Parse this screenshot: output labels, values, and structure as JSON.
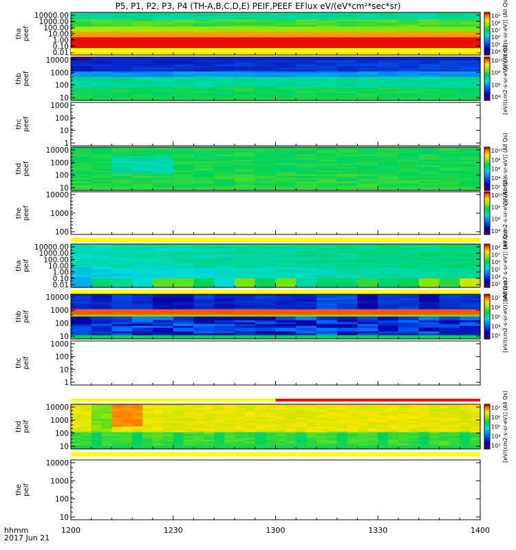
{
  "title": "P5, P1, P2, P3, P4 (TH-A,B,C,D,E) PEIF,PEEF EFlux eV/(eV*cm²*sec*sr)",
  "footer": {
    "time_label": "hhmm",
    "date_label": "2017 Jun 21"
  },
  "colorbar_unit": "[eV/(cm2-s-sr-eV)] (All Qs)",
  "chart_data": {
    "type": "heatmap",
    "x_axis": {
      "range": [
        1200,
        1400
      ],
      "ticks": [
        "1200",
        "1230",
        "1300",
        "1330",
        "1400"
      ]
    },
    "panels": [
      {
        "name": "tha-peef",
        "ylabel": [
          "tha",
          "peef"
        ],
        "yticks": [
          "10000.00",
          "1000.00",
          "100.00",
          "10.00",
          "1.00",
          "0.10",
          "0.01"
        ],
        "has_data": true,
        "colormin": 4,
        "colormax": 9,
        "cb_ticks": [
          "10⁹",
          "10⁸",
          "10⁷",
          "10⁶",
          "10⁵",
          "10⁴"
        ],
        "bar_after": "yellow"
      },
      {
        "name": "thb-peef",
        "ylabel": [
          "thb",
          "peef"
        ],
        "yticks": [
          "10000",
          "1000",
          "100",
          "10"
        ],
        "has_data": true,
        "colormin": 4,
        "colormax": 10,
        "cb_ticks": [
          "10¹⁰",
          "10⁸",
          "10⁶",
          "10⁴"
        ],
        "bar_after": null
      },
      {
        "name": "thc-peef",
        "ylabel": [
          "thc",
          "peef"
        ],
        "yticks": [
          "1000",
          "100",
          "10",
          "1"
        ],
        "has_data": false,
        "bar_after": null
      },
      {
        "name": "thd-peef",
        "ylabel": [
          "thd",
          "peef"
        ],
        "yticks": [
          "10000",
          "1000",
          "100",
          "10"
        ],
        "has_data": true,
        "colormin": 2,
        "colormax": 10,
        "cb_ticks": [
          "10¹⁰",
          "10⁸",
          "10⁶",
          "10⁴",
          "10²"
        ],
        "bar_after": null
      },
      {
        "name": "the-peef",
        "ylabel": [
          "the",
          "peef"
        ],
        "yticks": [
          "10000",
          "1000",
          "100"
        ],
        "has_data": true,
        "colormin": 4,
        "colormax": 10,
        "cb_ticks": [
          "10¹⁰",
          "10⁸",
          "10⁶",
          "10⁴"
        ],
        "empty_plot": true,
        "bar_after": "yellow"
      },
      {
        "name": "tha-peif",
        "ylabel": [
          "tha",
          "peif"
        ],
        "yticks": [
          "10000.00",
          "1000.00",
          "100.00",
          "10.00",
          "1.00",
          "0.10",
          "0.01"
        ],
        "has_data": true,
        "colormin": 3,
        "colormax": 8,
        "cb_ticks": [
          "10⁸",
          "10⁷",
          "10⁶",
          "10⁵",
          "10⁴",
          "10³"
        ],
        "bar_after": "yellow"
      },
      {
        "name": "thb-peif",
        "ylabel": [
          "thb",
          "peif"
        ],
        "yticks": [
          "10000",
          "1000",
          "100",
          "10"
        ],
        "has_data": true,
        "colormin": 2,
        "colormax": 7,
        "cb_ticks": [
          "10⁷",
          "10⁶",
          "10⁵",
          "10⁴",
          "10³"
        ],
        "bar_after": null
      },
      {
        "name": "thc-peif",
        "ylabel": [
          "thc",
          "peif"
        ],
        "yticks": [
          "1000",
          "100",
          "10",
          "1"
        ],
        "has_data": false,
        "bar_after": "yellow-red"
      },
      {
        "name": "thd-peif",
        "ylabel": [
          "thd",
          "peif"
        ],
        "yticks": [
          "10000",
          "1000",
          "100",
          "10"
        ],
        "has_data": true,
        "colormin": 3,
        "colormax": 7,
        "cb_ticks": [
          "10⁷",
          "10⁶",
          "10⁵",
          "10⁴",
          "10³"
        ],
        "bar_after": "yellow"
      },
      {
        "name": "the-peif",
        "ylabel": [
          "the",
          "peif"
        ],
        "yticks": [
          "10000",
          "1000",
          "100",
          "10"
        ],
        "has_data": false,
        "bar_after": null
      }
    ]
  }
}
